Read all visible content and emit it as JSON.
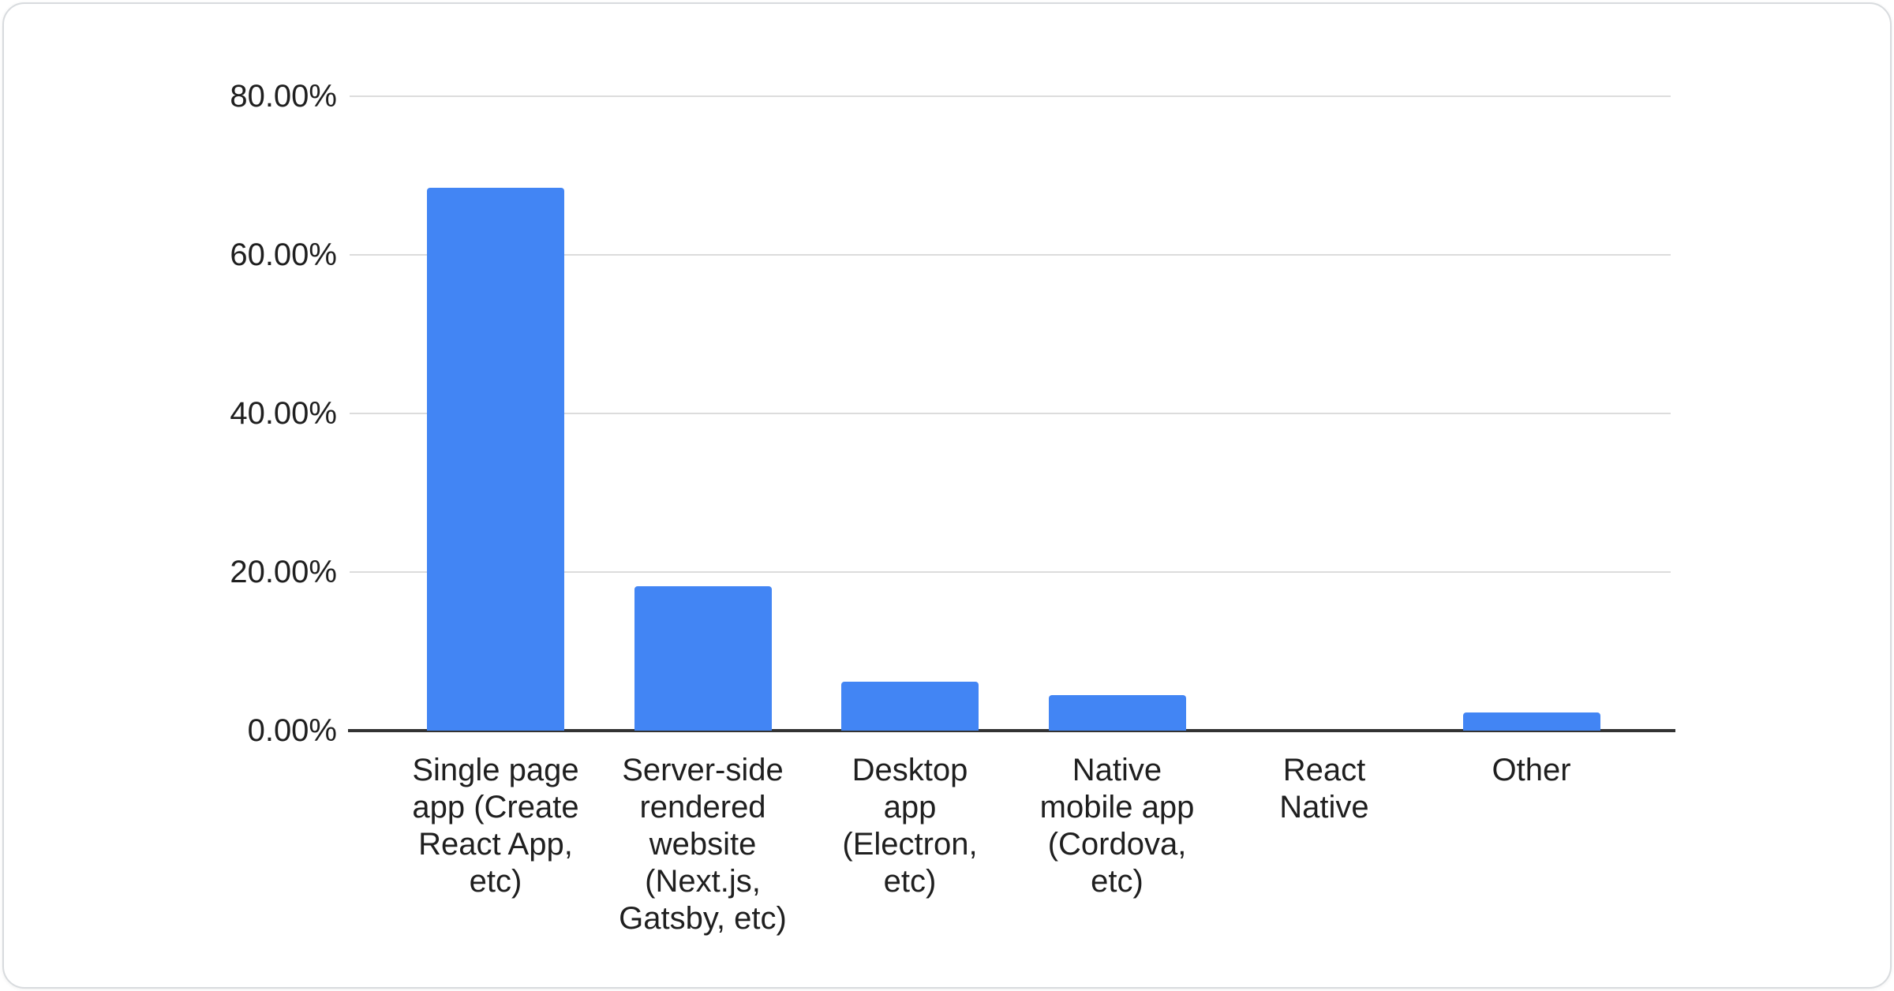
{
  "page": {
    "background": "#ffffff",
    "card_border_color": "#d8dbde"
  },
  "chart_data": {
    "type": "bar",
    "title": "",
    "xlabel": "",
    "ylabel": "",
    "legend": "none",
    "grid": true,
    "ylim": [
      0,
      80
    ],
    "value_unit": "%",
    "categories": [
      "Single page app (Create React App, etc)",
      "Server-side rendered website (Next.js, Gatsby, etc)",
      "Desktop app (Electron, etc)",
      "Native mobile app (Cordova, etc)",
      "React Native",
      "Other"
    ],
    "category_lines": [
      [
        "Single page",
        "app (Create",
        "React App,",
        "etc)"
      ],
      [
        "Server-side",
        "rendered",
        "website",
        "(Next.js,",
        "Gatsby, etc)"
      ],
      [
        "Desktop",
        "app",
        "(Electron,",
        "etc)"
      ],
      [
        "Native",
        "mobile app",
        "(Cordova,",
        "etc)"
      ],
      [
        "React",
        "Native"
      ],
      [
        "Other"
      ]
    ],
    "values": [
      68.5,
      18.2,
      6.2,
      4.5,
      0,
      2.3
    ],
    "y_ticks": [
      {
        "value": 0,
        "label": "0.00%"
      },
      {
        "value": 20,
        "label": "20.00%"
      },
      {
        "value": 40,
        "label": "40.00%"
      },
      {
        "value": 60,
        "label": "60.00%"
      },
      {
        "value": 80,
        "label": "80.00%"
      }
    ],
    "colors": {
      "bar": "#4285f4",
      "gridline": "#dcdcdc",
      "axis_line": "#333333",
      "text": "#1f1f1f"
    }
  }
}
